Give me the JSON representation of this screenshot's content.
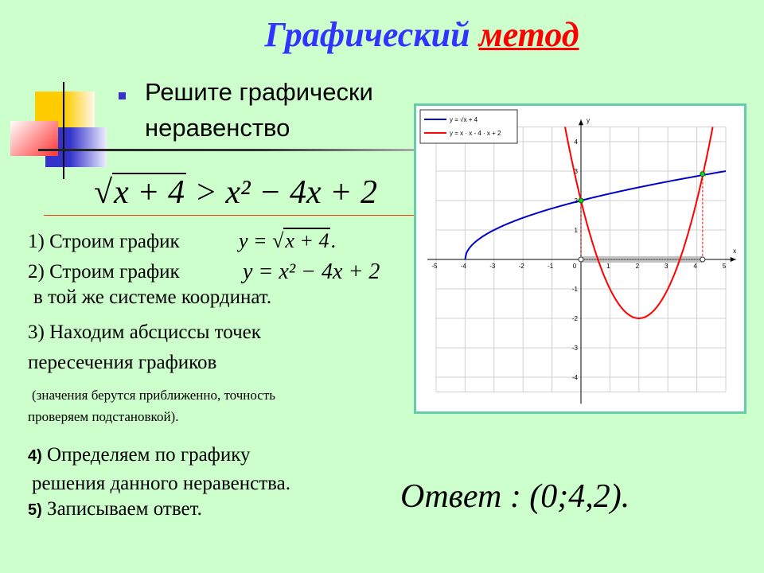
{
  "title": {
    "part1": "Графический",
    "part2": "метод"
  },
  "task": {
    "line1": "Решите графически",
    "line2": "неравенство"
  },
  "inequality": {
    "radicand": "x + 4",
    "rhs": "> x² − 4x + 2"
  },
  "steps": {
    "s1": "1) Строим график",
    "s1_formula_lhs": "y = ",
    "s1_formula_rad": "x + 4",
    "s1_formula_end": ".",
    "s2": "2) Строим график",
    "s2_formula": "y = x² − 4x + 2",
    "s2_cont": "в той же системе координат.",
    "s3_line1": "3) Находим абсциссы точек",
    "s3_line2": "пересечения графиков",
    "s3_note1": "(значения берутся приближенно, точность",
    "s3_note2": "проверяем подстановкой).",
    "s4_num": "4)",
    "s4_line1": "Определяем по графику",
    "s4_line2": "решения данного неравенства.",
    "s5_num": "5)",
    "s5_line1": "Записываем ответ."
  },
  "answer": "Ответ : (0;4,2).",
  "colors": {
    "background": "#ccffcc",
    "title": "#3333ff",
    "accent": "#ff0000",
    "sqrt_curve": "#0000cc",
    "parabola": "#ff0000",
    "points": "#22cc22"
  },
  "chart_data": {
    "type": "line",
    "xlim": [
      -5,
      5
    ],
    "ylim": [
      -4.5,
      4.5
    ],
    "grid": true,
    "x_ticks": [
      "-5",
      "-4",
      "-3",
      "-2",
      "-1",
      "0",
      "1",
      "2",
      "3",
      "4",
      "5"
    ],
    "y_ticks": [
      "-4",
      "-3",
      "-2",
      "-1",
      "1",
      "2",
      "3",
      "4"
    ],
    "xlabel": "x",
    "ylabel": "y",
    "legend_placement": "top-left",
    "series": [
      {
        "name": "y = √x + 4",
        "function": "sqrt(x+4)",
        "domain": [
          -4,
          5
        ],
        "color": "#0000cc"
      },
      {
        "name": "y = x · x - 4 · x + 2",
        "function": "x*x-4*x+2",
        "domain": [
          -0.55,
          4.55
        ],
        "color": "#ff0000"
      }
    ],
    "intersections": [
      {
        "x": 0,
        "y": 2
      },
      {
        "x": 4.2,
        "y": 2.9
      }
    ],
    "solution_interval": [
      0,
      4.2
    ]
  }
}
